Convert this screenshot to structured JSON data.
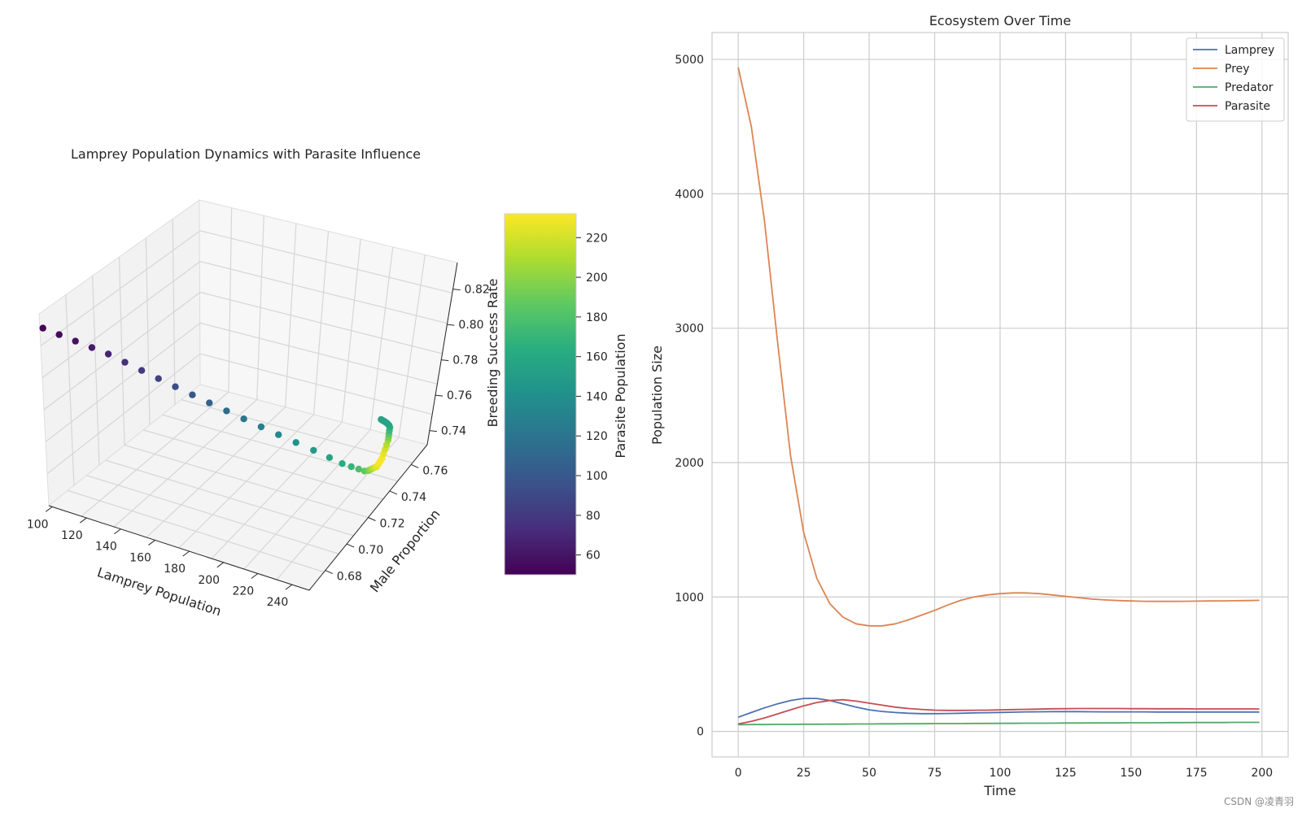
{
  "chart_data": [
    {
      "type": "scatter3d",
      "title": "Lamprey Population Dynamics with Parasite Influence",
      "xlabel": "Lamprey Population",
      "ylabel": "Male Proportion",
      "zlabel": "Breeding Success Rate",
      "xticks": [
        "100",
        "120",
        "140",
        "160",
        "180",
        "200",
        "220",
        "240"
      ],
      "yticks": [
        "0.68",
        "0.70",
        "0.72",
        "0.74",
        "0.76"
      ],
      "zticks": [
        "0.74",
        "0.76",
        "0.78",
        "0.80",
        "0.82"
      ],
      "xlim": [
        98,
        250
      ],
      "ylim": [
        0.665,
        0.775
      ],
      "zlim": [
        0.732,
        0.835
      ],
      "colorbar": {
        "label": "Parasite Population",
        "colormap": "viridis",
        "range": [
          50,
          232
        ],
        "ticks": [
          "60",
          "80",
          "100",
          "120",
          "140",
          "160",
          "180",
          "200",
          "220"
        ]
      },
      "points": [
        {
          "x": 100,
          "y": 0.665,
          "z": 0.828,
          "c": 52
        },
        {
          "x": 108,
          "y": 0.668,
          "z": 0.825,
          "c": 55
        },
        {
          "x": 116,
          "y": 0.671,
          "z": 0.822,
          "c": 59
        },
        {
          "x": 124,
          "y": 0.674,
          "z": 0.819,
          "c": 63
        },
        {
          "x": 132,
          "y": 0.677,
          "z": 0.816,
          "c": 68
        },
        {
          "x": 140,
          "y": 0.68,
          "z": 0.812,
          "c": 74
        },
        {
          "x": 148,
          "y": 0.683,
          "z": 0.808,
          "c": 80
        },
        {
          "x": 156,
          "y": 0.686,
          "z": 0.804,
          "c": 86
        },
        {
          "x": 164,
          "y": 0.689,
          "z": 0.8,
          "c": 93
        },
        {
          "x": 172,
          "y": 0.692,
          "z": 0.796,
          "c": 100
        },
        {
          "x": 180,
          "y": 0.695,
          "z": 0.792,
          "c": 107
        },
        {
          "x": 188,
          "y": 0.698,
          "z": 0.788,
          "c": 114
        },
        {
          "x": 196,
          "y": 0.701,
          "z": 0.784,
          "c": 121
        },
        {
          "x": 204,
          "y": 0.704,
          "z": 0.78,
          "c": 128
        },
        {
          "x": 212,
          "y": 0.707,
          "z": 0.776,
          "c": 135
        },
        {
          "x": 220,
          "y": 0.71,
          "z": 0.772,
          "c": 142
        },
        {
          "x": 228,
          "y": 0.713,
          "z": 0.768,
          "c": 149
        },
        {
          "x": 235,
          "y": 0.716,
          "z": 0.764,
          "c": 156
        },
        {
          "x": 240,
          "y": 0.719,
          "z": 0.76,
          "c": 163
        },
        {
          "x": 243,
          "y": 0.722,
          "z": 0.757,
          "c": 170
        },
        {
          "x": 245,
          "y": 0.725,
          "z": 0.754,
          "c": 178
        },
        {
          "x": 246,
          "y": 0.728,
          "z": 0.751,
          "c": 186
        },
        {
          "x": 246,
          "y": 0.731,
          "z": 0.749,
          "c": 194
        },
        {
          "x": 245,
          "y": 0.734,
          "z": 0.747,
          "c": 202
        },
        {
          "x": 244,
          "y": 0.737,
          "z": 0.745,
          "c": 210
        },
        {
          "x": 243,
          "y": 0.74,
          "z": 0.743,
          "c": 218
        },
        {
          "x": 242,
          "y": 0.743,
          "z": 0.741,
          "c": 225
        },
        {
          "x": 241,
          "y": 0.746,
          "z": 0.74,
          "c": 229
        },
        {
          "x": 240,
          "y": 0.749,
          "z": 0.739,
          "c": 231
        },
        {
          "x": 239,
          "y": 0.752,
          "z": 0.738,
          "c": 230
        },
        {
          "x": 238,
          "y": 0.755,
          "z": 0.738,
          "c": 226
        },
        {
          "x": 237,
          "y": 0.758,
          "z": 0.738,
          "c": 220
        },
        {
          "x": 236,
          "y": 0.761,
          "z": 0.738,
          "c": 212
        },
        {
          "x": 235,
          "y": 0.764,
          "z": 0.738,
          "c": 203
        },
        {
          "x": 234,
          "y": 0.766,
          "z": 0.738,
          "c": 193
        },
        {
          "x": 233,
          "y": 0.768,
          "z": 0.738,
          "c": 183
        },
        {
          "x": 232,
          "y": 0.77,
          "z": 0.738,
          "c": 173
        },
        {
          "x": 231,
          "y": 0.772,
          "z": 0.738,
          "c": 165
        },
        {
          "x": 230,
          "y": 0.773,
          "z": 0.738,
          "c": 160
        },
        {
          "x": 229,
          "y": 0.7735,
          "z": 0.738,
          "c": 157
        },
        {
          "x": 228,
          "y": 0.774,
          "z": 0.738,
          "c": 156
        },
        {
          "x": 227,
          "y": 0.7743,
          "z": 0.738,
          "c": 155
        },
        {
          "x": 226,
          "y": 0.7746,
          "z": 0.738,
          "c": 155
        },
        {
          "x": 225,
          "y": 0.7748,
          "z": 0.738,
          "c": 155
        },
        {
          "x": 224,
          "y": 0.775,
          "z": 0.738,
          "c": 155
        }
      ]
    },
    {
      "type": "line",
      "title": "Ecosystem Over Time",
      "xlabel": "Time",
      "ylabel": "Population Size",
      "xlim": [
        -10,
        210
      ],
      "ylim": [
        -190,
        5200
      ],
      "xticks": [
        0,
        25,
        50,
        75,
        100,
        125,
        150,
        175,
        200
      ],
      "yticks": [
        0,
        1000,
        2000,
        3000,
        4000,
        5000
      ],
      "grid": true,
      "legend_position": "top-right",
      "x": [
        0,
        5,
        10,
        15,
        20,
        25,
        30,
        35,
        40,
        45,
        50,
        55,
        60,
        65,
        70,
        75,
        80,
        85,
        90,
        95,
        100,
        105,
        110,
        115,
        120,
        125,
        130,
        135,
        140,
        145,
        150,
        155,
        160,
        165,
        170,
        175,
        180,
        185,
        190,
        195,
        199
      ],
      "series": [
        {
          "name": "Lamprey",
          "color": "#4c72b0",
          "values": [
            105,
            140,
            175,
            205,
            230,
            245,
            245,
            230,
            205,
            180,
            160,
            148,
            140,
            135,
            132,
            132,
            133,
            135,
            137,
            139,
            141,
            143,
            145,
            146,
            147,
            147,
            147,
            146,
            145,
            145,
            145,
            145,
            144,
            144,
            144,
            144,
            144,
            144,
            144,
            144,
            144
          ]
        },
        {
          "name": "Prey",
          "color": "#dd8452",
          "values": [
            4940,
            4500,
            3800,
            2900,
            2050,
            1480,
            1140,
            950,
            850,
            800,
            785,
            785,
            800,
            830,
            865,
            900,
            940,
            975,
            1000,
            1015,
            1025,
            1030,
            1030,
            1025,
            1015,
            1005,
            995,
            985,
            978,
            973,
            970,
            968,
            967,
            967,
            968,
            969,
            970,
            971,
            972,
            973,
            975
          ]
        },
        {
          "name": "Predator",
          "color": "#55a868",
          "values": [
            50,
            51,
            51,
            52,
            52,
            53,
            53,
            54,
            54,
            55,
            55,
            56,
            56,
            57,
            57,
            58,
            58,
            58,
            59,
            59,
            60,
            60,
            61,
            61,
            61,
            62,
            62,
            63,
            63,
            63,
            64,
            64,
            64,
            65,
            65,
            66,
            66,
            66,
            67,
            67,
            67
          ]
        },
        {
          "name": "Parasite",
          "color": "#c44e52",
          "values": [
            55,
            75,
            100,
            130,
            160,
            190,
            215,
            230,
            235,
            225,
            210,
            195,
            180,
            170,
            163,
            158,
            156,
            156,
            157,
            158,
            160,
            162,
            164,
            166,
            168,
            169,
            170,
            170,
            170,
            170,
            169,
            169,
            168,
            168,
            168,
            167,
            167,
            167,
            167,
            167,
            167
          ]
        }
      ]
    }
  ],
  "watermark": "CSDN @凌青羽"
}
